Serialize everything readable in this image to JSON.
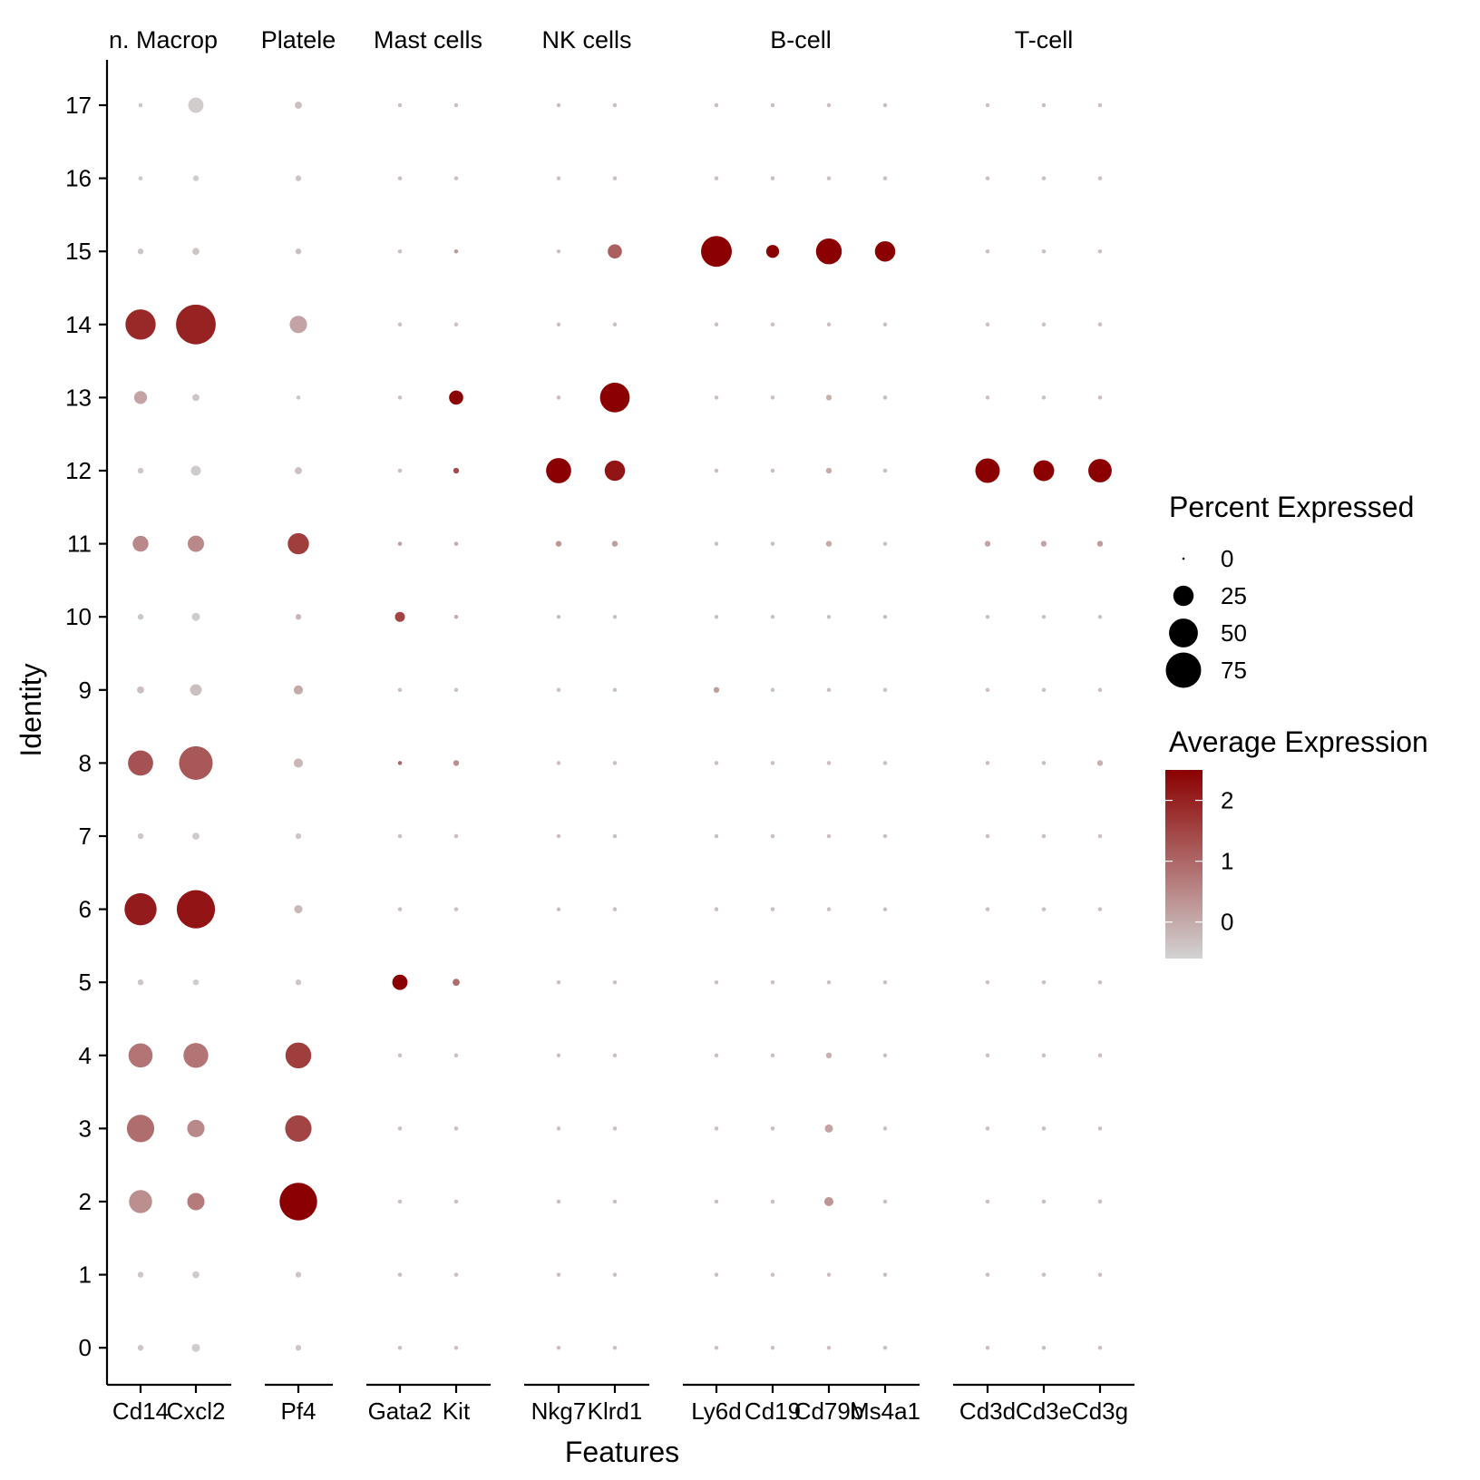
{
  "chart_data": {
    "type": "dotplot",
    "title": "",
    "xlabel": "Features",
    "ylabel": "Identity",
    "groups": [
      {
        "label": "n. Macrop",
        "features": [
          "Cd14",
          "Cxcl2"
        ]
      },
      {
        "label": "Platele",
        "features": [
          "Pf4"
        ]
      },
      {
        "label": "Mast cells",
        "features": [
          "Gata2",
          "Kit"
        ]
      },
      {
        "label": "NK cells",
        "features": [
          "Nkg7",
          "Klrd1"
        ]
      },
      {
        "label": "B-cell",
        "features": [
          "Ly6d",
          "Cd19",
          "Cd79b",
          "Ms4a1"
        ]
      },
      {
        "label": "T-cell",
        "features": [
          "Cd3d",
          "Cd3e",
          "Cd3g"
        ]
      }
    ],
    "features": [
      "Cd14",
      "Cxcl2",
      "Pf4",
      "Gata2",
      "Kit",
      "Nkg7",
      "Klrd1",
      "Ly6d",
      "Cd19",
      "Cd79b",
      "Ms4a1",
      "Cd3d",
      "Cd3e",
      "Cd3g"
    ],
    "identities": [
      "0",
      "1",
      "2",
      "3",
      "4",
      "5",
      "6",
      "7",
      "8",
      "9",
      "10",
      "11",
      "12",
      "13",
      "14",
      "15",
      "16",
      "17"
    ],
    "percent_expressed": [
      [
        2,
        4,
        2,
        1,
        1,
        1,
        1,
        1,
        1,
        1,
        1,
        1,
        1,
        1
      ],
      [
        2,
        3,
        2,
        1,
        1,
        1,
        1,
        1,
        1,
        1,
        1,
        1,
        1,
        1
      ],
      [
        32,
        18,
        85,
        1,
        1,
        1,
        1,
        1,
        1,
        5,
        1,
        1,
        1,
        1
      ],
      [
        45,
        18,
        42,
        1,
        1,
        1,
        1,
        1,
        1,
        4,
        1,
        1,
        1,
        1
      ],
      [
        35,
        37,
        40,
        1,
        1,
        1,
        1,
        1,
        1,
        2,
        1,
        1,
        1,
        1
      ],
      [
        2,
        2,
        2,
        14,
        3,
        1,
        1,
        1,
        1,
        1,
        1,
        1,
        1,
        1
      ],
      [
        62,
        88,
        4,
        1,
        1,
        1,
        1,
        1,
        1,
        1,
        1,
        1,
        1,
        1
      ],
      [
        2,
        3,
        2,
        1,
        1,
        1,
        1,
        1,
        1,
        1,
        1,
        1,
        1,
        1
      ],
      [
        38,
        68,
        5,
        1,
        2,
        1,
        1,
        1,
        1,
        1,
        1,
        1,
        1,
        2
      ],
      [
        3,
        8,
        5,
        1,
        1,
        1,
        1,
        2,
        1,
        1,
        1,
        1,
        1,
        1
      ],
      [
        2,
        4,
        2,
        6,
        1,
        1,
        1,
        1,
        1,
        1,
        1,
        1,
        1,
        1
      ],
      [
        15,
        16,
        27,
        1,
        1,
        2,
        2,
        1,
        1,
        2,
        1,
        2,
        2,
        2
      ],
      [
        2,
        6,
        3,
        1,
        2,
        38,
        25,
        1,
        1,
        2,
        1,
        36,
        26,
        33
      ],
      [
        10,
        3,
        1,
        1,
        12,
        1,
        53,
        1,
        1,
        2,
        1,
        1,
        1,
        1
      ],
      [
        55,
        95,
        18,
        1,
        1,
        1,
        1,
        1,
        1,
        1,
        1,
        1,
        1,
        1
      ],
      [
        2,
        3,
        2,
        1,
        1,
        1,
        12,
        57,
        10,
        40,
        25,
        1,
        1,
        1
      ],
      [
        1,
        2,
        2,
        1,
        1,
        1,
        1,
        1,
        1,
        1,
        1,
        1,
        1,
        1
      ],
      [
        1,
        14,
        3,
        1,
        1,
        1,
        1,
        1,
        1,
        1,
        1,
        1,
        1,
        1
      ]
    ],
    "average_expression": [
      [
        -0.4,
        -0.5,
        -0.4,
        -0.3,
        -0.3,
        -0.3,
        -0.3,
        -0.3,
        -0.3,
        -0.3,
        -0.3,
        -0.3,
        -0.3,
        -0.3
      ],
      [
        -0.4,
        -0.5,
        -0.4,
        -0.3,
        -0.3,
        -0.3,
        -0.3,
        -0.3,
        -0.3,
        -0.3,
        -0.3,
        -0.3,
        -0.3,
        -0.3
      ],
      [
        0.4,
        0.7,
        2.5,
        -0.3,
        -0.3,
        -0.3,
        -0.3,
        -0.3,
        -0.3,
        0.3,
        -0.3,
        -0.3,
        -0.3,
        -0.3
      ],
      [
        0.9,
        0.5,
        1.5,
        -0.3,
        -0.3,
        -0.3,
        -0.3,
        -0.3,
        -0.3,
        0.1,
        -0.3,
        -0.3,
        -0.3,
        -0.3
      ],
      [
        0.8,
        0.8,
        1.6,
        -0.3,
        -0.3,
        -0.3,
        -0.3,
        -0.3,
        -0.3,
        -0.1,
        -0.3,
        -0.3,
        -0.3,
        -0.3
      ],
      [
        -0.4,
        -0.5,
        -0.4,
        2.5,
        0.9,
        -0.3,
        -0.3,
        -0.3,
        -0.3,
        -0.3,
        -0.3,
        -0.3,
        -0.3,
        -0.3
      ],
      [
        2.1,
        2.2,
        -0.2,
        -0.3,
        -0.3,
        -0.3,
        -0.3,
        -0.3,
        -0.3,
        -0.3,
        -0.3,
        -0.3,
        -0.3,
        -0.3
      ],
      [
        -0.4,
        -0.5,
        -0.4,
        -0.3,
        -0.3,
        -0.3,
        -0.3,
        -0.3,
        -0.3,
        -0.3,
        -0.3,
        -0.3,
        -0.3,
        -0.3
      ],
      [
        1.3,
        1.2,
        -0.2,
        1.0,
        0.4,
        -0.3,
        -0.3,
        -0.3,
        -0.3,
        -0.3,
        -0.3,
        -0.3,
        -0.3,
        -0.1
      ],
      [
        -0.3,
        -0.3,
        0.0,
        -0.3,
        -0.3,
        -0.3,
        -0.3,
        0.2,
        -0.3,
        -0.3,
        -0.3,
        -0.3,
        -0.3,
        -0.3
      ],
      [
        -0.4,
        -0.5,
        -0.2,
        1.5,
        0.0,
        -0.3,
        -0.3,
        -0.3,
        -0.3,
        -0.3,
        -0.3,
        -0.3,
        -0.3,
        -0.3
      ],
      [
        0.5,
        0.5,
        1.6,
        0.2,
        0.0,
        0.3,
        0.2,
        -0.3,
        -0.3,
        0.0,
        -0.3,
        0.1,
        0.1,
        0.2
      ],
      [
        -0.4,
        -0.5,
        -0.3,
        -0.3,
        1.4,
        2.5,
        2.2,
        -0.3,
        -0.3,
        0.0,
        -0.3,
        2.5,
        2.5,
        2.5
      ],
      [
        0.1,
        -0.4,
        -0.4,
        -0.3,
        2.5,
        -0.3,
        2.5,
        -0.3,
        -0.3,
        -0.1,
        -0.3,
        -0.3,
        -0.3,
        -0.3
      ],
      [
        1.9,
        2.0,
        0.1,
        -0.3,
        -0.3,
        -0.3,
        -0.3,
        -0.3,
        -0.3,
        -0.3,
        -0.3,
        -0.3,
        -0.3,
        -0.3
      ],
      [
        -0.4,
        -0.4,
        -0.3,
        -0.3,
        0.3,
        -0.3,
        1.1,
        2.5,
        2.5,
        2.5,
        2.5,
        -0.3,
        -0.3,
        -0.3
      ],
      [
        -0.4,
        -0.5,
        -0.4,
        -0.3,
        -0.3,
        -0.3,
        -0.3,
        -0.3,
        -0.3,
        -0.3,
        -0.3,
        -0.3,
        -0.3,
        -0.3
      ],
      [
        -0.4,
        -0.5,
        -0.3,
        -0.3,
        -0.3,
        -0.3,
        -0.3,
        -0.3,
        -0.3,
        -0.3,
        -0.3,
        -0.3,
        -0.3,
        -0.3
      ]
    ],
    "size_legend": {
      "title": "Percent Expressed",
      "breaks": [
        0,
        25,
        50,
        75
      ],
      "labels": [
        "0",
        "25",
        "50",
        "75"
      ]
    },
    "color_legend": {
      "title": "Average Expression",
      "breaks": [
        0,
        1,
        2
      ],
      "labels": [
        "0",
        "1",
        "2"
      ],
      "range": [
        -0.6,
        2.5
      ],
      "low_color": "#d3d3d3",
      "high_color": "#8b0000"
    },
    "legend_position": "right",
    "grid": false
  }
}
